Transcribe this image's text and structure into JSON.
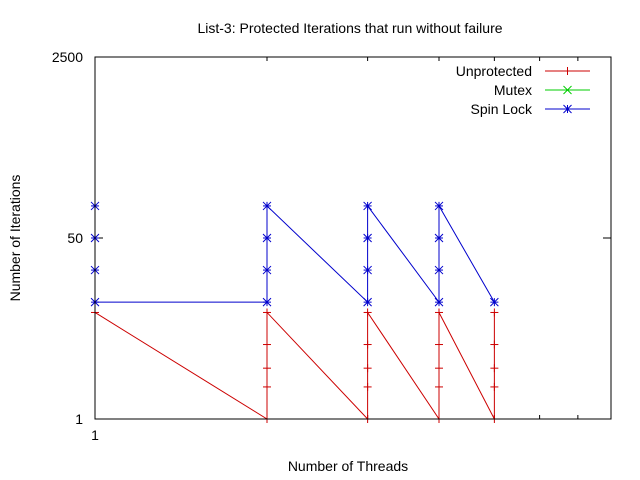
{
  "chart_data": {
    "type": "line",
    "title": "List-3: Protected Iterations that run without failure",
    "xlabel": "Number of Threads",
    "ylabel": "Number of Iterations",
    "x_scale": "log",
    "y_scale": "log",
    "xlim": [
      1,
      8
    ],
    "ylim": [
      1,
      2500
    ],
    "x_ticks": [
      {
        "value": 1,
        "label": "1"
      }
    ],
    "y_ticks": [
      {
        "value": 1,
        "label": "1"
      },
      {
        "value": 50,
        "label": "50"
      },
      {
        "value": 2500,
        "label": "2500"
      }
    ],
    "legend_position": "top-right",
    "grid": false,
    "series": [
      {
        "name": "Unprotected",
        "color": "#cc0000",
        "marker": "plus",
        "points": [
          [
            1,
            10
          ],
          [
            2,
            1
          ],
          [
            2,
            2
          ],
          [
            2,
            3
          ],
          [
            2,
            5
          ],
          [
            2,
            10
          ],
          [
            3,
            1
          ],
          [
            3,
            2
          ],
          [
            3,
            3
          ],
          [
            3,
            5
          ],
          [
            3,
            10
          ],
          [
            4,
            1
          ],
          [
            4,
            2
          ],
          [
            4,
            3
          ],
          [
            4,
            5
          ],
          [
            4,
            10
          ],
          [
            5,
            1
          ],
          [
            5,
            2
          ],
          [
            5,
            3
          ],
          [
            5,
            5
          ],
          [
            5,
            10
          ]
        ]
      },
      {
        "name": "Mutex",
        "color": "#00cc00",
        "marker": "cross",
        "points": []
      },
      {
        "name": "Spin Lock",
        "color": "#0000cc",
        "marker": "star",
        "points": [
          [
            1,
            100
          ],
          [
            1,
            50
          ],
          [
            1,
            25
          ],
          [
            1,
            12.5
          ],
          [
            2,
            12.5
          ],
          [
            2,
            25
          ],
          [
            2,
            50
          ],
          [
            2,
            100
          ],
          [
            3,
            12.5
          ],
          [
            3,
            25
          ],
          [
            3,
            50
          ],
          [
            3,
            100
          ],
          [
            4,
            12.5
          ],
          [
            4,
            25
          ],
          [
            4,
            50
          ],
          [
            4,
            100
          ],
          [
            5,
            12.5
          ]
        ]
      }
    ]
  }
}
